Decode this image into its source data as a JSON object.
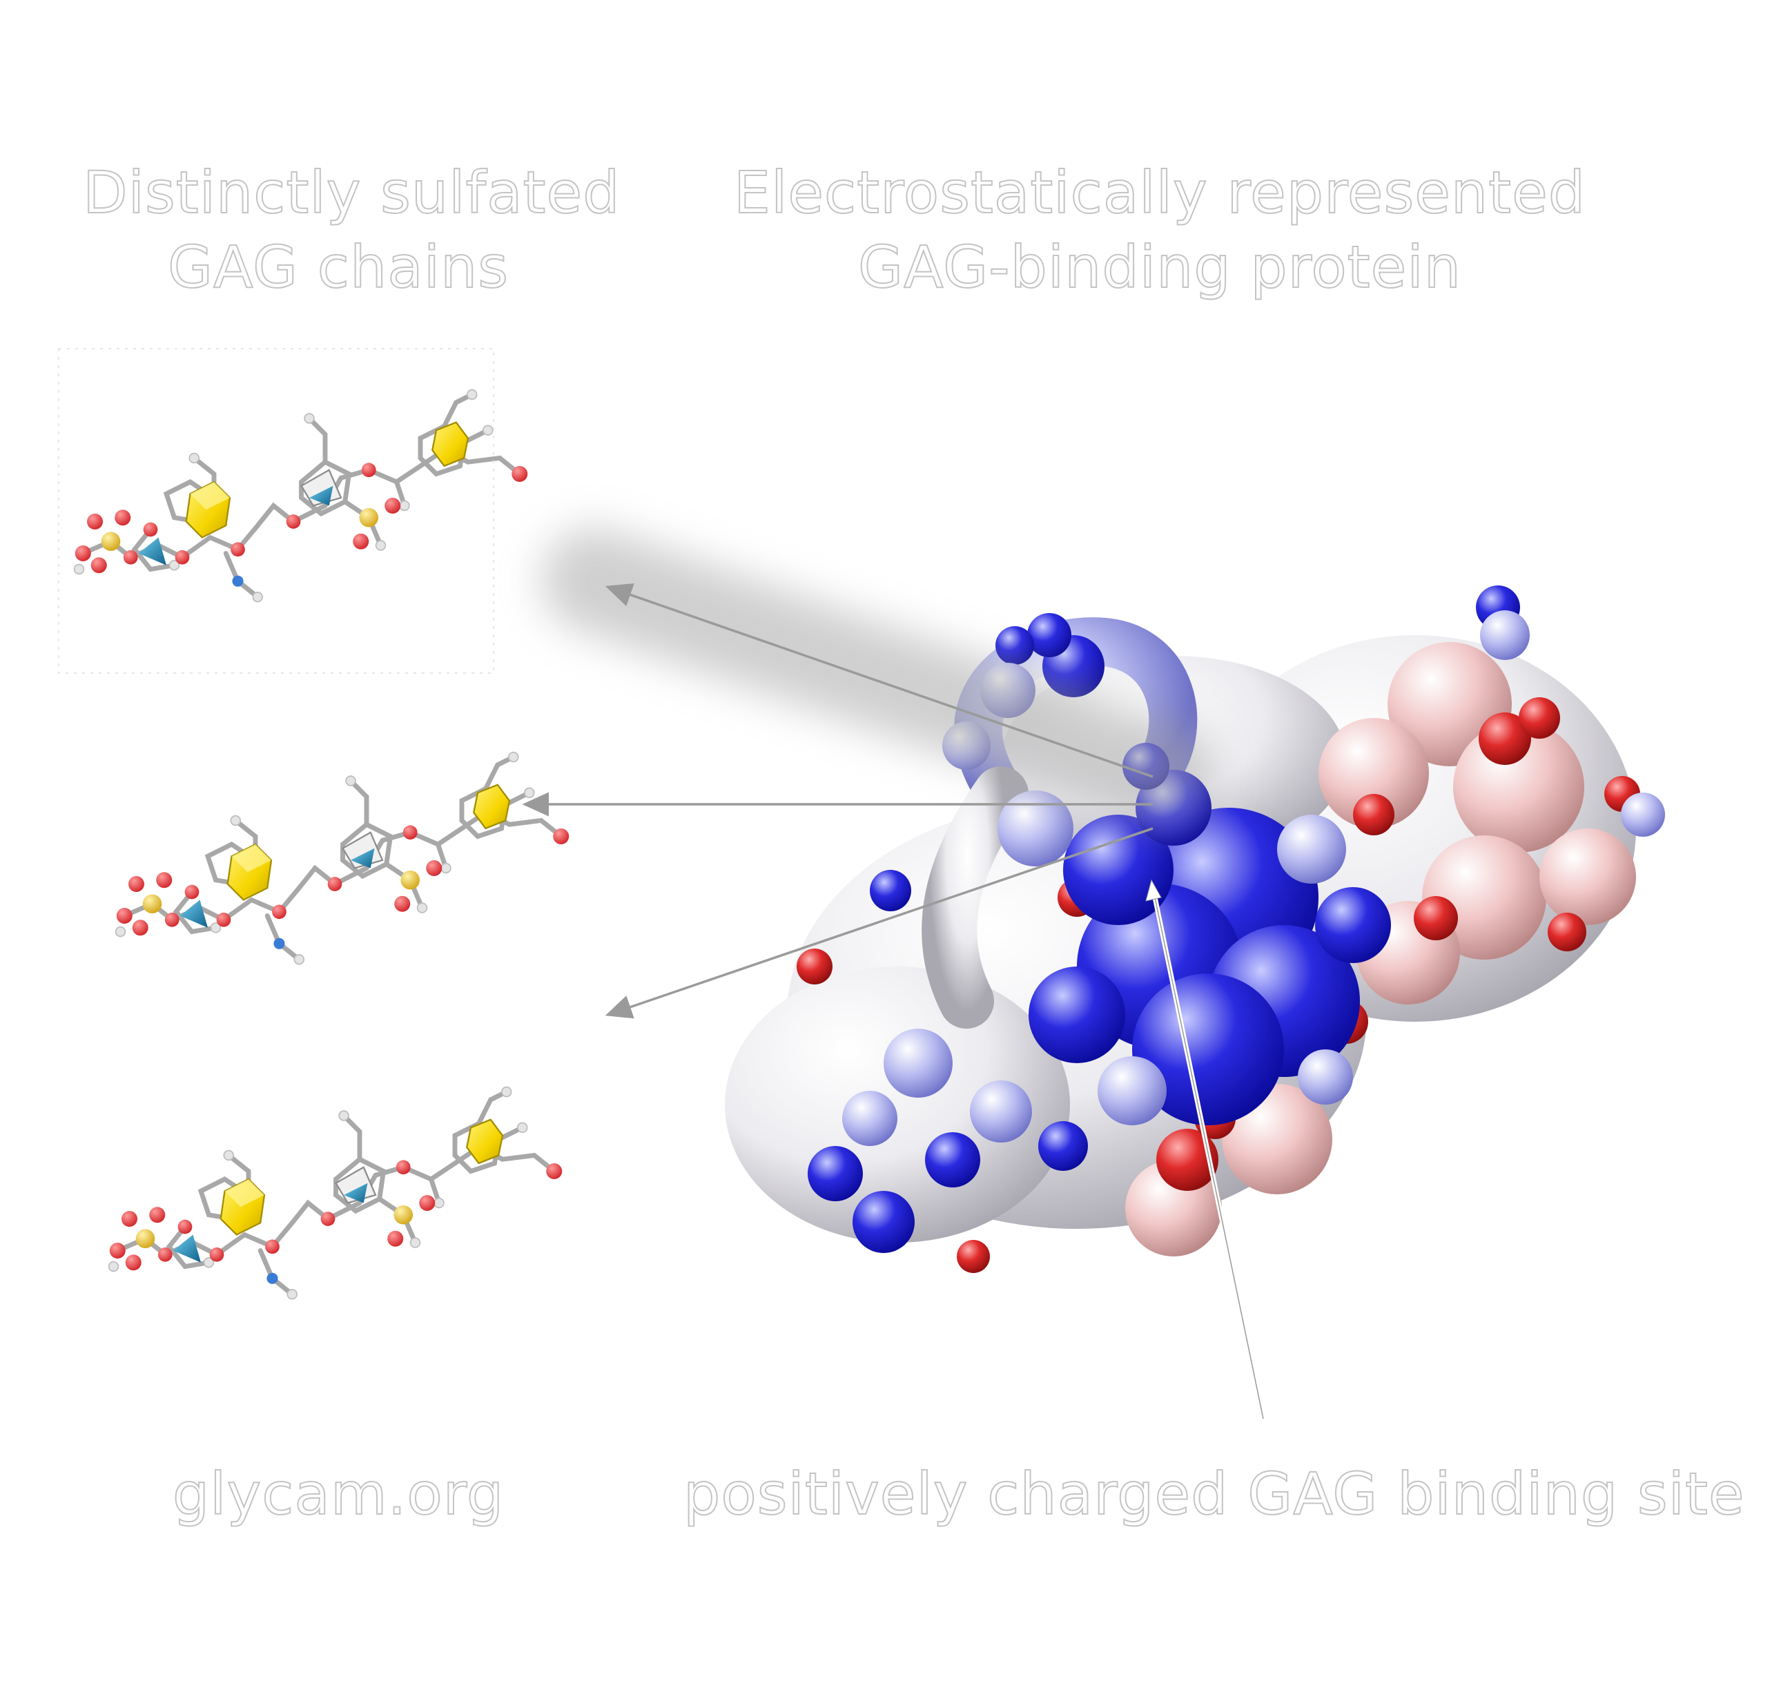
{
  "labels": {
    "gag_title_line1": "Distinctly sulfated",
    "gag_title_line2": "GAG chains",
    "protein_title_line1": "Electrostatically represented",
    "protein_title_line2": "GAG-binding protein",
    "source": "glycam.org",
    "binding_site": "positively charged GAG binding site"
  },
  "colors": {
    "positive_charge": "#1a1acc",
    "negative_charge": "#d41e1e",
    "neutral_surface": "#f2f0f2",
    "sulfur": "#e8c440",
    "oxygen": "#e8474a",
    "nitrogen": "#3a7bd5",
    "carbon_bond": "#9a9a9a",
    "iduronic_cube": "#f6d500",
    "glcnac_pyramid": "#1b86b8",
    "arrow": "#9a9a9a"
  },
  "icons": {
    "gag_chains": [
      "gag-chain-1-icon",
      "gag-chain-2-icon",
      "gag-chain-3-icon"
    ],
    "protein": "protein-surface-icon"
  }
}
